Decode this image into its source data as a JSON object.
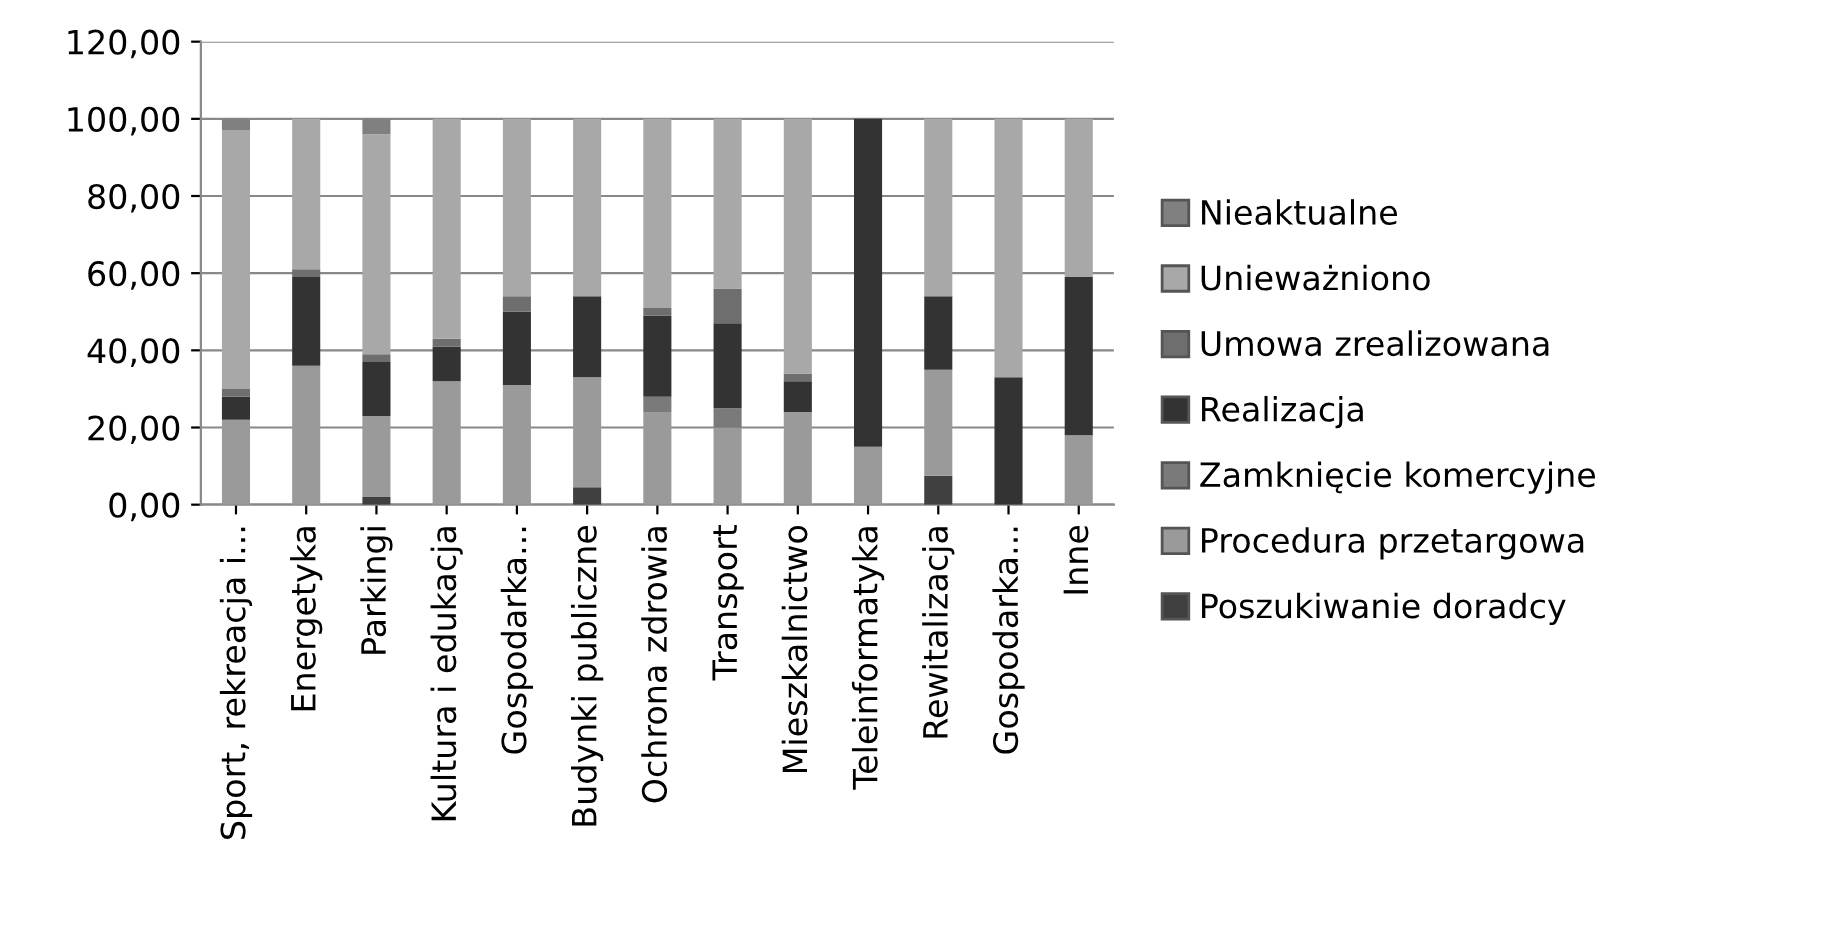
{
  "chart_data": {
    "type": "bar",
    "stacked": true,
    "categories": [
      "Sport, rekreacja i...",
      "Energetyka",
      "Parkingi",
      "Kultura i edukacja",
      "Gospodarka...",
      "Budynki publiczne",
      "Ochrona zdrowia",
      "Transport",
      "Mieszkalnictwo",
      "Teleinformatyka",
      "Rewitalizacja",
      "Gospodarka...",
      "Inne"
    ],
    "series": [
      {
        "name": "Poszukiwanie doradcy",
        "color": "#404040",
        "values": [
          0,
          0,
          2,
          0,
          0,
          4.5,
          0,
          0,
          0,
          0,
          7.5,
          0,
          0
        ]
      },
      {
        "name": "Procedura przetargowa",
        "color": "#9a9a9a",
        "values": [
          22,
          36,
          21,
          32,
          31,
          28.5,
          24,
          20,
          24,
          15,
          27.5,
          0,
          18
        ]
      },
      {
        "name": "Zamknięcie komercyjne",
        "color": "#7a7a7a",
        "values": [
          0,
          0,
          0,
          0,
          0,
          0,
          4,
          5,
          0,
          0,
          0,
          0,
          0
        ]
      },
      {
        "name": "Realizacja",
        "color": "#333333",
        "values": [
          6,
          23,
          14,
          9,
          19,
          21,
          21,
          22,
          8,
          85,
          19,
          33,
          41
        ]
      },
      {
        "name": "Umowa zrealizowana",
        "color": "#6e6e6e",
        "values": [
          2,
          2,
          2,
          2,
          4,
          0,
          2,
          9,
          2,
          0,
          0,
          0,
          0
        ]
      },
      {
        "name": "Unieważniono",
        "color": "#a8a8a8",
        "values": [
          67,
          39,
          57,
          57,
          46,
          46,
          49,
          44,
          66,
          0,
          46,
          67,
          41
        ]
      },
      {
        "name": "Nieaktualne",
        "color": "#808080",
        "values": [
          3,
          0,
          4,
          0,
          0,
          0,
          0,
          0,
          0,
          0,
          0,
          0,
          0
        ]
      }
    ],
    "ylim": [
      0,
      120
    ],
    "yticks": [
      {
        "value": 0,
        "label": "0,00"
      },
      {
        "value": 20,
        "label": "20,00"
      },
      {
        "value": 40,
        "label": "40,00"
      },
      {
        "value": 60,
        "label": "60,00"
      },
      {
        "value": 80,
        "label": "80,00"
      },
      {
        "value": 100,
        "label": "100,00"
      },
      {
        "value": 120,
        "label": "120,00"
      }
    ],
    "grid": "y",
    "legend": "right"
  }
}
